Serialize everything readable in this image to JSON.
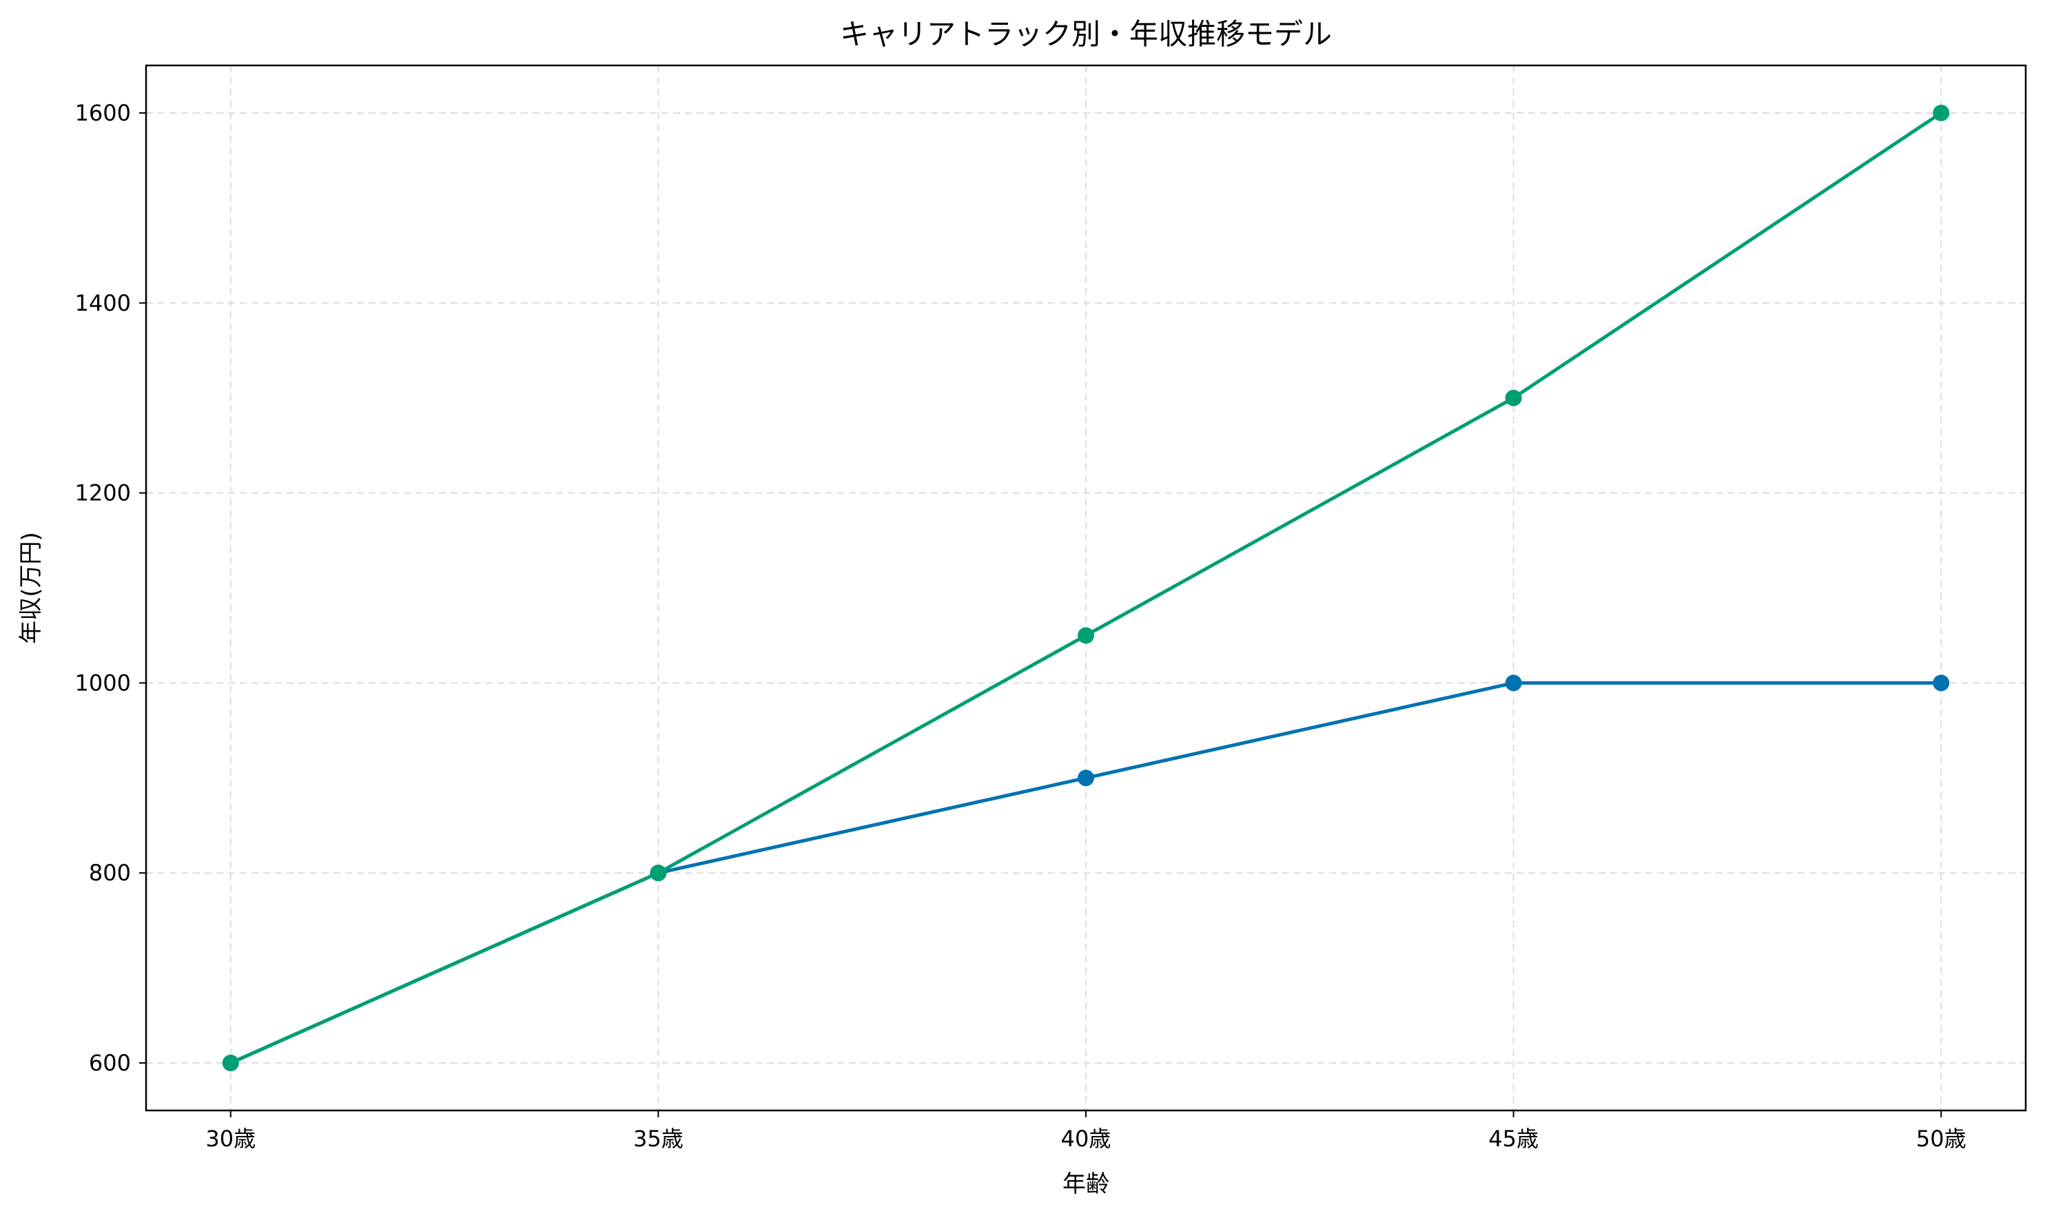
{
  "chart_data": {
    "type": "line",
    "title": "キャリアトラック別・年収推移モデル",
    "xlabel": "年齢",
    "ylabel": "年収(万円)",
    "categories": [
      "30歳",
      "35歳",
      "40歳",
      "45歳",
      "50歳"
    ],
    "yticks": [
      600,
      800,
      1000,
      1200,
      1400,
      1600
    ],
    "ylim": [
      550,
      1650
    ],
    "grid": true,
    "markers": true,
    "series": [
      {
        "color": "#0072b2",
        "values": [
          600,
          800,
          900,
          1000,
          1000
        ]
      },
      {
        "color": "#009e73",
        "values": [
          600,
          800,
          1050,
          1300,
          1600
        ]
      }
    ]
  }
}
